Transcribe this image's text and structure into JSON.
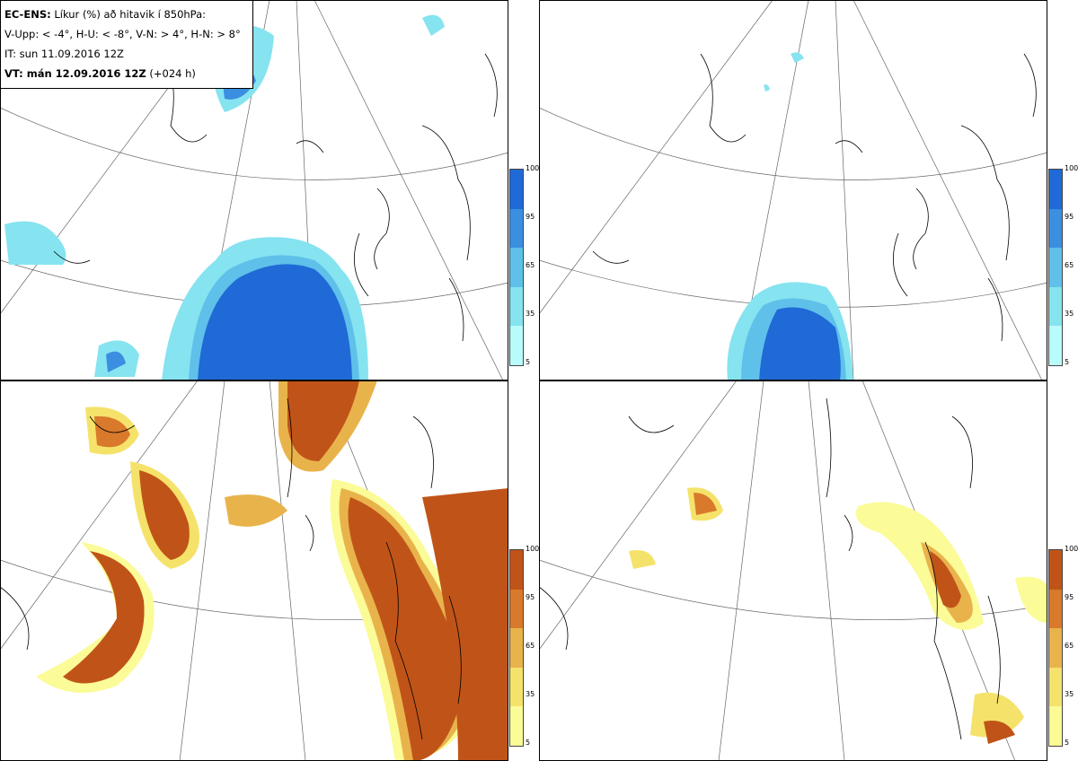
{
  "legend": {
    "line1_bold": "EC-ENS:",
    "line1_rest": "Líkur (%) að hitavik í 850hPa:",
    "line2": "V-Upp: < -4°, H-U: < -8°, V-N: > 4°, H-N: > 8°",
    "line3": "IT: sun 11.09.2016 12Z",
    "line4_bold": "VT: mán 12.09.2016 12Z",
    "line4_rest": "(+024 h)"
  },
  "colorbar_cold": {
    "ticks": [
      "100",
      "95",
      "65",
      "35",
      "5"
    ],
    "colors": [
      "#1f6ad6",
      "#3a8fe0",
      "#5fc0ea",
      "#86e3f0",
      "#b8fbfb"
    ]
  },
  "colorbar_warm": {
    "ticks": [
      "100",
      "95",
      "65",
      "35",
      "5"
    ],
    "colors": [
      "#c05418",
      "#d9792b",
      "#e9b34c",
      "#f5e26a",
      "#fbfb98"
    ]
  },
  "panels": [
    {
      "id": "cold-moderate",
      "scheme": "cold"
    },
    {
      "id": "cold-extreme",
      "scheme": "cold"
    },
    {
      "id": "warm-moderate",
      "scheme": "warm"
    },
    {
      "id": "warm-extreme",
      "scheme": "warm"
    }
  ]
}
